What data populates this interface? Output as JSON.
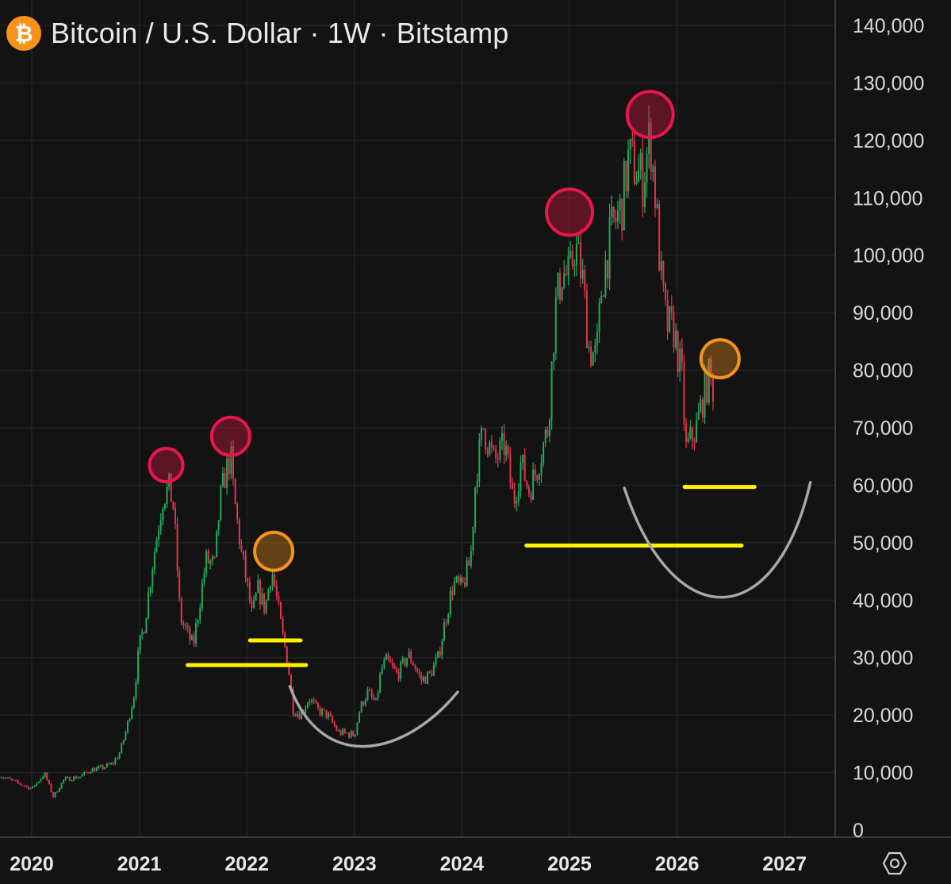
{
  "header": {
    "title": "Bitcoin / U.S. Dollar · 1W · Bitstamp",
    "icon": "bitcoin-icon",
    "icon_glyph": "₿",
    "icon_color": "#f7931a"
  },
  "settings": {
    "icon": "settings-hexagon-icon"
  },
  "colors": {
    "background": "#131313",
    "grid": "#2a2a2a",
    "up": "#22ab5a",
    "down": "#e0354f",
    "peak_marker": "#e8174a",
    "local_marker": "#f7931a",
    "support_line": "#fff200",
    "arc": "#a8a8a8"
  },
  "chart_data": {
    "type": "candlestick",
    "title": "Bitcoin / U.S. Dollar · 1W · Bitstamp",
    "x_axis": {
      "type": "time",
      "tick_labels": [
        "2020",
        "2021",
        "2022",
        "2023",
        "2024",
        "2025",
        "2026",
        "2027"
      ],
      "range": [
        2019.7,
        2027.45
      ]
    },
    "y_axis": {
      "position": "right",
      "tick_labels": [
        "0",
        "10,000",
        "20,000",
        "30,000",
        "40,000",
        "50,000",
        "60,000",
        "70,000",
        "80,000",
        "90,000",
        "100,000",
        "110,000",
        "120,000",
        "130,000",
        "140,000"
      ],
      "tick_values": [
        0,
        10000,
        20000,
        30000,
        40000,
        50000,
        60000,
        70000,
        80000,
        90000,
        100000,
        110000,
        120000,
        130000,
        140000
      ],
      "range": [
        0,
        142000
      ]
    },
    "grid": true,
    "series": [
      {
        "type": "close_path",
        "points": [
          [
            2019.7,
            9500
          ],
          [
            2019.85,
            8300
          ],
          [
            2020.0,
            7200
          ],
          [
            2020.12,
            9800
          ],
          [
            2020.2,
            5800
          ],
          [
            2020.3,
            8800
          ],
          [
            2020.45,
            9300
          ],
          [
            2020.55,
            10500
          ],
          [
            2020.65,
            10800
          ],
          [
            2020.75,
            11500
          ],
          [
            2020.82,
            13500
          ],
          [
            2020.88,
            17500
          ],
          [
            2020.95,
            23500
          ],
          [
            2021.0,
            32000
          ],
          [
            2021.05,
            36000
          ],
          [
            2021.12,
            46000
          ],
          [
            2021.17,
            52000
          ],
          [
            2021.22,
            58000
          ],
          [
            2021.28,
            59500
          ],
          [
            2021.32,
            56000
          ],
          [
            2021.38,
            37000
          ],
          [
            2021.45,
            34000
          ],
          [
            2021.5,
            32000
          ],
          [
            2021.55,
            38000
          ],
          [
            2021.62,
            47000
          ],
          [
            2021.7,
            46000
          ],
          [
            2021.75,
            57000
          ],
          [
            2021.8,
            62000
          ],
          [
            2021.85,
            65000
          ],
          [
            2021.88,
            58000
          ],
          [
            2021.95,
            48000
          ],
          [
            2022.0,
            43000
          ],
          [
            2022.05,
            37000
          ],
          [
            2022.1,
            42000
          ],
          [
            2022.17,
            38500
          ],
          [
            2022.23,
            45500
          ],
          [
            2022.28,
            40000
          ],
          [
            2022.33,
            34000
          ],
          [
            2022.38,
            29500
          ],
          [
            2022.43,
            21000
          ],
          [
            2022.5,
            20000
          ],
          [
            2022.58,
            23000
          ],
          [
            2022.65,
            21000
          ],
          [
            2022.75,
            20000
          ],
          [
            2022.85,
            17000
          ],
          [
            2022.92,
            16800
          ],
          [
            2023.0,
            16500
          ],
          [
            2023.05,
            21000
          ],
          [
            2023.12,
            24000
          ],
          [
            2023.2,
            22000
          ],
          [
            2023.25,
            28000
          ],
          [
            2023.3,
            29500
          ],
          [
            2023.4,
            27000
          ],
          [
            2023.5,
            30500
          ],
          [
            2023.55,
            29000
          ],
          [
            2023.62,
            26000
          ],
          [
            2023.7,
            27000
          ],
          [
            2023.78,
            30000
          ],
          [
            2023.85,
            37000
          ],
          [
            2023.92,
            43000
          ],
          [
            2024.0,
            42000
          ],
          [
            2024.08,
            47000
          ],
          [
            2024.13,
            62000
          ],
          [
            2024.2,
            70000
          ],
          [
            2024.3,
            64000
          ],
          [
            2024.4,
            67000
          ],
          [
            2024.48,
            57000
          ],
          [
            2024.55,
            64000
          ],
          [
            2024.62,
            59000
          ],
          [
            2024.7,
            63000
          ],
          [
            2024.8,
            70000
          ],
          [
            2024.87,
            91000
          ],
          [
            2024.93,
            97000
          ],
          [
            2025.0,
            96000
          ],
          [
            2025.05,
            102000
          ],
          [
            2025.12,
            96000
          ],
          [
            2025.18,
            84000
          ],
          [
            2025.25,
            82000
          ],
          [
            2025.3,
            95000
          ],
          [
            2025.4,
            105000
          ],
          [
            2025.48,
            108000
          ],
          [
            2025.55,
            117000
          ],
          [
            2025.62,
            115000
          ],
          [
            2025.68,
            113000
          ],
          [
            2025.75,
            121000
          ],
          [
            2025.8,
            110000
          ],
          [
            2025.85,
            96000
          ],
          [
            2025.9,
            88000
          ],
          [
            2025.97,
            87000
          ],
          [
            2026.05,
            78000
          ],
          [
            2026.08,
            66000
          ],
          [
            2026.13,
            68000
          ],
          [
            2026.18,
            70000
          ],
          [
            2026.25,
            76000
          ],
          [
            2026.3,
            79000
          ],
          [
            2026.35,
            76000
          ]
        ]
      }
    ],
    "annotations": {
      "peak_markers": [
        {
          "x": 2021.25,
          "y": 63500
        },
        {
          "x": 2021.85,
          "y": 68500
        },
        {
          "x": 2025.0,
          "y": 107500
        },
        {
          "x": 2025.75,
          "y": 124500
        }
      ],
      "local_markers": [
        {
          "x": 2022.25,
          "y": 48500
        },
        {
          "x": 2026.4,
          "y": 82000
        }
      ],
      "support_lines": [
        {
          "x1": 2021.45,
          "x2": 2022.55,
          "y": 28700
        },
        {
          "x1": 2022.03,
          "x2": 2022.5,
          "y": 33000
        },
        {
          "x1": 2024.6,
          "x2": 2026.6,
          "y": 49500
        },
        {
          "x1": 2026.07,
          "x2": 2026.72,
          "y": 59700
        }
      ],
      "arcs": [
        {
          "points": [
            [
              2022.4,
              25000
            ],
            [
              2022.7,
              10000
            ],
            [
              2023.45,
              12500
            ],
            [
              2023.96,
              24000
            ]
          ]
        },
        {
          "points": [
            [
              2025.51,
              59500
            ],
            [
              2025.96,
              34000
            ],
            [
              2026.91,
              34000
            ],
            [
              2027.24,
              60500
            ]
          ]
        }
      ]
    }
  }
}
